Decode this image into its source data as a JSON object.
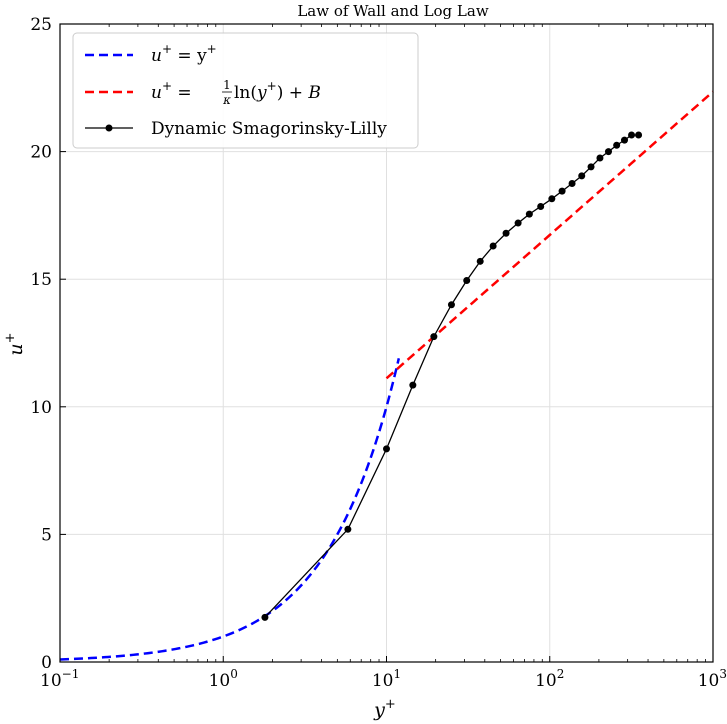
{
  "chart_data": {
    "type": "line",
    "title": "Law of Wall and Log Law",
    "xlabel": "y+",
    "ylabel": "u+",
    "xscale": "log",
    "xlim": [
      0.1,
      1000
    ],
    "ylim": [
      0,
      25
    ],
    "grid": true,
    "legend_position": "top-left",
    "x_ticks": [
      {
        "value": 0.1,
        "base": "10",
        "exp": "−1"
      },
      {
        "value": 1,
        "base": "10",
        "exp": "0"
      },
      {
        "value": 10,
        "base": "10",
        "exp": "1"
      },
      {
        "value": 100,
        "base": "10",
        "exp": "2"
      },
      {
        "value": 1000,
        "base": "10",
        "exp": "3"
      }
    ],
    "y_ticks": [
      0,
      5,
      10,
      15,
      20,
      25
    ],
    "series": [
      {
        "name": "viscous-sublayer",
        "label": "u+ = y+",
        "color": "#0000ff",
        "style": "dashed",
        "kind": "linear_identity",
        "x_range": [
          0.1,
          11.9
        ]
      },
      {
        "name": "log-law",
        "label": "u+ = (1/κ) ln(y+) + B",
        "color": "#ff0000",
        "style": "dashed",
        "kind": "log_law",
        "kappa": 0.41,
        "B": 5.5,
        "x_range": [
          10,
          1000
        ]
      },
      {
        "name": "dynamic-smagorinsky-lilly",
        "label": "Dynamic Smagorinsky-Lilly",
        "color": "#000000",
        "style": "solid-markers",
        "x": [
          1.8,
          5.8,
          10,
          14.5,
          19.5,
          25,
          31,
          37.5,
          45,
          54,
          64,
          75,
          88,
          103,
          119,
          137,
          157,
          179,
          203,
          229,
          257,
          287,
          317,
          350
        ],
        "y": [
          1.75,
          5.2,
          8.35,
          10.85,
          12.75,
          14.0,
          14.95,
          15.7,
          16.3,
          16.8,
          17.2,
          17.55,
          17.85,
          18.15,
          18.45,
          18.75,
          19.05,
          19.4,
          19.75,
          20.0,
          20.25,
          20.45,
          20.65,
          20.65
        ]
      }
    ]
  },
  "legend": {
    "items": [
      {
        "name": "viscous-sublayer",
        "lhs": "u",
        "sup": "+",
        "rhs_plain": " = y",
        "rhs_sup": "+"
      },
      {
        "name": "log-law",
        "lhs": "u",
        "sup": "+",
        "frac_num": "1",
        "frac_den": "κ",
        "rest_a": " ln(",
        "rest_y": "y",
        "rest_sup": "+",
        "rest_b": ") + ",
        "rest_B": "B",
        "prefix": " = "
      },
      {
        "name": "dynamic-smagorinsky-lilly",
        "text": "Dynamic Smagorinsky-Lilly"
      }
    ]
  },
  "colors": {
    "blue": "#0000ff",
    "red": "#ff0000",
    "black": "#000000",
    "grid": "#e0e0e0"
  }
}
